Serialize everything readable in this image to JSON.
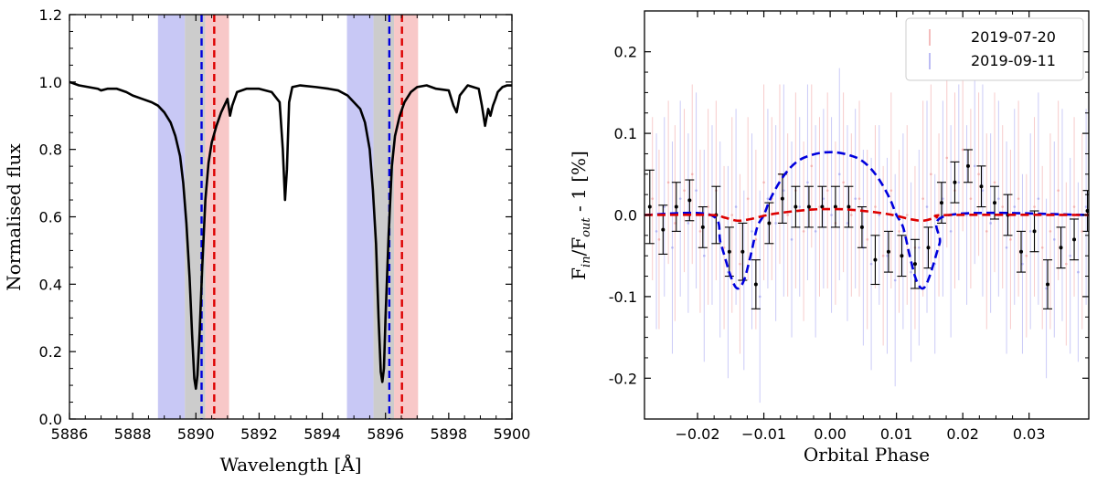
{
  "chart_data": [
    {
      "type": "line",
      "title": "",
      "xlabel": "Wavelength [Å]",
      "ylabel": "Normalised flux",
      "xlim": [
        5886,
        5900
      ],
      "ylim": [
        0.0,
        1.2
      ],
      "xticks": [
        5886,
        5888,
        5890,
        5892,
        5894,
        5896,
        5898,
        5900
      ],
      "yticks": [
        0.0,
        0.2,
        0.4,
        0.6,
        0.8,
        1.0,
        1.2
      ],
      "xtick_labels": [
        "5886",
        "5888",
        "5890",
        "5892",
        "5894",
        "5896",
        "5898",
        "5900"
      ],
      "ytick_labels": [
        "0.0",
        "0.2",
        "0.4",
        "0.6",
        "0.8",
        "1.0",
        "1.2"
      ],
      "bands": [
        {
          "name": "blue-band-d2",
          "from": 5888.8,
          "to": 5889.65,
          "color": "#c8c8f5"
        },
        {
          "name": "grey-band-d2",
          "from": 5889.65,
          "to": 5890.3,
          "color": "#cccccc"
        },
        {
          "name": "red-band-d2",
          "from": 5890.3,
          "to": 5891.05,
          "color": "#f8c8c8"
        },
        {
          "name": "blue-band-d1",
          "from": 5894.78,
          "to": 5895.62,
          "color": "#c8c8f5"
        },
        {
          "name": "grey-band-d1",
          "from": 5895.62,
          "to": 5896.27,
          "color": "#cccccc"
        },
        {
          "name": "red-band-d1",
          "from": 5896.27,
          "to": 5897.03,
          "color": "#f8c8c8"
        }
      ],
      "vlines": [
        {
          "name": "blue-dashed-d2",
          "x": 5890.18,
          "color": "#0000dd"
        },
        {
          "name": "red-dashed-d2",
          "x": 5890.58,
          "color": "#dd0000"
        },
        {
          "name": "blue-dashed-d1",
          "x": 5896.12,
          "color": "#0000dd"
        },
        {
          "name": "red-dashed-d1",
          "x": 5896.52,
          "color": "#dd0000"
        }
      ],
      "series": [
        {
          "name": "spectrum",
          "color": "#000000",
          "x": [
            5886.0,
            5886.3,
            5886.6,
            5886.9,
            5887.0,
            5887.2,
            5887.5,
            5887.8,
            5888.0,
            5888.3,
            5888.6,
            5888.8,
            5889.0,
            5889.2,
            5889.35,
            5889.5,
            5889.6,
            5889.7,
            5889.8,
            5889.88,
            5889.95,
            5890.0,
            5890.05,
            5890.12,
            5890.2,
            5890.3,
            5890.4,
            5890.5,
            5890.65,
            5890.8,
            5891.0,
            5891.08,
            5891.15,
            5891.3,
            5891.6,
            5892.0,
            5892.4,
            5892.65,
            5892.75,
            5892.82,
            5892.88,
            5892.95,
            5893.05,
            5893.3,
            5893.8,
            5894.2,
            5894.5,
            5894.8,
            5895.0,
            5895.2,
            5895.35,
            5895.5,
            5895.6,
            5895.7,
            5895.78,
            5895.85,
            5895.9,
            5895.95,
            5896.0,
            5896.1,
            5896.2,
            5896.3,
            5896.45,
            5896.6,
            5896.8,
            5897.0,
            5897.3,
            5897.6,
            5898.0,
            5898.15,
            5898.25,
            5898.35,
            5898.6,
            5898.95,
            5899.05,
            5899.15,
            5899.25,
            5899.32,
            5899.4,
            5899.48,
            5899.55,
            5899.7,
            5899.85,
            5900.0
          ],
          "y": [
            1.0,
            0.99,
            0.985,
            0.98,
            0.975,
            0.98,
            0.98,
            0.97,
            0.96,
            0.95,
            0.94,
            0.93,
            0.91,
            0.88,
            0.84,
            0.78,
            0.7,
            0.58,
            0.42,
            0.25,
            0.12,
            0.09,
            0.13,
            0.26,
            0.45,
            0.65,
            0.76,
            0.82,
            0.87,
            0.91,
            0.95,
            0.9,
            0.93,
            0.97,
            0.98,
            0.98,
            0.97,
            0.94,
            0.8,
            0.65,
            0.74,
            0.94,
            0.985,
            0.99,
            0.985,
            0.98,
            0.975,
            0.96,
            0.94,
            0.92,
            0.88,
            0.8,
            0.68,
            0.52,
            0.3,
            0.14,
            0.11,
            0.15,
            0.3,
            0.55,
            0.75,
            0.84,
            0.9,
            0.94,
            0.97,
            0.985,
            0.99,
            0.98,
            0.975,
            0.93,
            0.91,
            0.96,
            0.99,
            0.98,
            0.93,
            0.87,
            0.92,
            0.9,
            0.93,
            0.95,
            0.97,
            0.985,
            0.99,
            0.99
          ]
        }
      ]
    },
    {
      "type": "scatter",
      "title": "",
      "xlabel": "Orbital Phase",
      "ylabel_parts": [
        "F",
        "in",
        "/F",
        "out",
        " - 1 [%]"
      ],
      "xlim": [
        -0.028,
        0.039
      ],
      "ylim": [
        -0.25,
        0.25
      ],
      "xticks": [
        -0.02,
        -0.01,
        0.0,
        0.01,
        0.02,
        0.03
      ],
      "yticks": [
        -0.2,
        -0.1,
        0.0,
        0.1,
        0.2
      ],
      "xtick_labels": [
        "−0.02",
        "−0.01",
        "0.00",
        "0.01",
        "0.02",
        "0.03"
      ],
      "ytick_labels": [
        "-0.2",
        "-0.1",
        "0.0",
        "0.1",
        "0.2"
      ],
      "legend": {
        "position": "top-right",
        "entries": [
          {
            "label": "2019-07-20",
            "color": "#f0a0a0"
          },
          {
            "label": "2019-09-11",
            "color": "#a0a0f0"
          }
        ]
      },
      "series": [
        {
          "name": "binned-average",
          "color": "#000000",
          "x": [
            -0.0272,
            -0.0252,
            -0.0232,
            -0.0212,
            -0.0192,
            -0.0172,
            -0.0152,
            -0.0132,
            -0.0112,
            -0.0092,
            -0.0072,
            -0.0052,
            -0.0032,
            -0.0012,
            0.0008,
            0.0028,
            0.0048,
            0.0068,
            0.0088,
            0.0108,
            0.0128,
            0.0148,
            0.0168,
            0.0188,
            0.0208,
            0.0228,
            0.0248,
            0.0268,
            0.0288,
            0.0308,
            0.0328,
            0.0348,
            0.0368,
            0.0388
          ],
          "y": [
            0.01,
            -0.018,
            0.01,
            0.018,
            -0.015,
            0.0,
            -0.045,
            -0.045,
            -0.085,
            -0.01,
            0.02,
            0.01,
            0.01,
            0.01,
            0.01,
            0.01,
            -0.015,
            -0.055,
            -0.045,
            -0.05,
            -0.06,
            -0.04,
            0.015,
            0.04,
            0.06,
            0.035,
            0.015,
            0.0,
            -0.045,
            -0.02,
            -0.085,
            -0.04,
            -0.03,
            0.005
          ],
          "err": [
            0.045,
            0.03,
            0.03,
            0.025,
            0.025,
            0.035,
            0.03,
            0.035,
            0.03,
            0.025,
            0.03,
            0.025,
            0.025,
            0.025,
            0.025,
            0.025,
            0.025,
            0.03,
            0.025,
            0.025,
            0.03,
            0.025,
            0.025,
            0.025,
            0.02,
            0.025,
            0.02,
            0.025,
            0.025,
            0.025,
            0.03,
            0.025,
            0.025,
            0.025
          ]
        },
        {
          "name": "night-2019-07-20",
          "color": "#f0a0a0",
          "x": [
            -0.0268,
            -0.0258,
            -0.0244,
            -0.0234,
            -0.022,
            -0.0208,
            -0.0196,
            -0.0184,
            -0.0172,
            -0.016,
            -0.0148,
            -0.0136,
            -0.0124,
            -0.0112,
            -0.01,
            -0.0088,
            -0.0076,
            -0.0064,
            -0.0052,
            -0.004,
            -0.0028,
            -0.0016,
            -0.0004,
            0.0008,
            0.002,
            0.0032,
            0.0044,
            0.0056,
            0.0068,
            0.008,
            0.0092,
            0.0104,
            0.0116,
            0.0128,
            0.014,
            0.0152,
            0.0164,
            0.0176,
            0.0188,
            0.02,
            0.0212,
            0.0224,
            0.0236,
            0.0248,
            0.026,
            0.0272,
            0.0284,
            0.0296,
            0.0308,
            0.032,
            0.0332,
            0.0344,
            0.0356,
            0.0368,
            0.038
          ],
          "y": [
            0.02,
            -0.03,
            0.04,
            -0.01,
            0.03,
            0.05,
            -0.02,
            0.01,
            0.03,
            -0.04,
            0.0,
            -0.06,
            0.02,
            -0.03,
            0.04,
            0.02,
            0.05,
            0.0,
            0.03,
            -0.02,
            0.06,
            0.01,
            0.03,
            -0.01,
            0.04,
            0.0,
            0.02,
            -0.03,
            0.01,
            -0.05,
            0.03,
            -0.02,
            0.0,
            -0.04,
            0.02,
            0.05,
            0.0,
            0.07,
            0.03,
            0.08,
            0.02,
            0.05,
            -0.02,
            0.04,
            0.01,
            -0.03,
            0.02,
            -0.05,
            0.01,
            -0.04,
            -0.02,
            0.03,
            -0.06,
            0.01,
            -0.02
          ],
          "err": [
            0.1,
            0.11,
            0.1,
            0.12,
            0.1,
            0.11,
            0.1,
            0.12,
            0.11,
            0.1,
            0.12,
            0.11,
            0.1,
            0.11,
            0.12,
            0.1,
            0.11,
            0.1,
            0.12,
            0.11,
            0.1,
            0.11,
            0.12,
            0.1,
            0.11,
            0.1,
            0.12,
            0.11,
            0.1,
            0.11,
            0.12,
            0.1,
            0.11,
            0.1,
            0.12,
            0.11,
            0.1,
            0.11,
            0.12,
            0.1,
            0.11,
            0.1,
            0.12,
            0.11,
            0.1,
            0.11,
            0.12,
            0.1,
            0.11,
            0.1,
            0.12,
            0.11,
            0.1,
            0.11,
            0.12
          ]
        },
        {
          "name": "night-2019-09-11",
          "color": "#a0a0f0",
          "x": [
            -0.0262,
            -0.025,
            -0.0238,
            -0.0226,
            -0.0214,
            -0.0202,
            -0.019,
            -0.0178,
            -0.0166,
            -0.0154,
            -0.0142,
            -0.013,
            -0.0118,
            -0.0106,
            -0.0094,
            -0.0082,
            -0.007,
            -0.0058,
            -0.0046,
            -0.0034,
            -0.0022,
            -0.001,
            0.0002,
            0.0014,
            0.0026,
            0.0038,
            0.005,
            0.0062,
            0.0074,
            0.0086,
            0.0098,
            0.011,
            0.0122,
            0.0134,
            0.0146,
            0.0158,
            0.017,
            0.0182,
            0.0194,
            0.0206,
            0.0218,
            0.023,
            0.0242,
            0.0254,
            0.0266,
            0.0278,
            0.029,
            0.0302,
            0.0314,
            0.0326,
            0.0338,
            0.035,
            0.0362,
            0.0374,
            0.0386
          ],
          "y": [
            -0.02,
            0.01,
            -0.04,
            0.02,
            -0.01,
            0.03,
            -0.05,
            0.0,
            -0.03,
            -0.07,
            0.01,
            -0.08,
            -0.02,
            -0.1,
            0.02,
            -0.01,
            0.03,
            -0.03,
            0.01,
            0.04,
            -0.02,
            0.02,
            0.0,
            0.05,
            -0.01,
            0.02,
            -0.04,
            -0.06,
            0.0,
            -0.05,
            -0.08,
            -0.02,
            -0.07,
            -0.04,
            0.01,
            -0.06,
            0.02,
            -0.02,
            0.04,
            0.0,
            0.06,
            0.03,
            -0.01,
            0.02,
            -0.04,
            0.01,
            -0.06,
            -0.02,
            0.02,
            -0.09,
            -0.03,
            0.0,
            -0.05,
            -0.07,
            0.01
          ],
          "err": [
            0.12,
            0.11,
            0.13,
            0.12,
            0.11,
            0.12,
            0.13,
            0.11,
            0.12,
            0.13,
            0.12,
            0.11,
            0.12,
            0.13,
            0.11,
            0.12,
            0.13,
            0.12,
            0.11,
            0.12,
            0.13,
            0.11,
            0.12,
            0.13,
            0.12,
            0.11,
            0.12,
            0.13,
            0.11,
            0.12,
            0.13,
            0.12,
            0.11,
            0.12,
            0.13,
            0.11,
            0.12,
            0.13,
            0.12,
            0.11,
            0.12,
            0.13,
            0.11,
            0.12,
            0.13,
            0.12,
            0.11,
            0.12,
            0.13,
            0.11,
            0.12,
            0.13,
            0.12,
            0.11,
            0.12
          ]
        }
      ],
      "models": [
        {
          "name": "blue-dashed-model",
          "color": "#0000dd",
          "x": [
            -0.028,
            -0.018,
            -0.0165,
            -0.015,
            -0.014,
            -0.013,
            -0.012,
            -0.011,
            -0.01,
            -0.009,
            -0.0075,
            -0.006,
            -0.0045,
            -0.003,
            -0.0015,
            0.0,
            0.0015,
            0.003,
            0.0045,
            0.006,
            0.0075,
            0.009,
            0.01,
            0.011,
            0.012,
            0.013,
            0.014,
            0.015,
            0.0165,
            0.018,
            0.039
          ],
          "y": [
            0.0,
            0.0,
            -0.035,
            -0.075,
            -0.09,
            -0.08,
            -0.05,
            -0.015,
            0.0,
            0.02,
            0.042,
            0.058,
            0.068,
            0.073,
            0.076,
            0.077,
            0.076,
            0.073,
            0.068,
            0.058,
            0.042,
            0.02,
            0.0,
            -0.015,
            -0.05,
            -0.08,
            -0.09,
            -0.075,
            -0.035,
            0.0,
            0.0
          ]
        },
        {
          "name": "red-dashed-model",
          "color": "#dd0000",
          "x": [
            -0.028,
            -0.018,
            -0.016,
            -0.014,
            -0.012,
            -0.01,
            -0.008,
            -0.005,
            -0.002,
            0.0,
            0.002,
            0.005,
            0.008,
            0.01,
            0.012,
            0.014,
            0.016,
            0.018,
            0.039
          ],
          "y": [
            0.0,
            0.0,
            -0.003,
            -0.007,
            -0.005,
            -0.001,
            0.002,
            0.005,
            0.007,
            0.0072,
            0.007,
            0.005,
            0.002,
            -0.001,
            -0.005,
            -0.007,
            -0.003,
            0.0,
            0.0
          ]
        }
      ]
    }
  ]
}
